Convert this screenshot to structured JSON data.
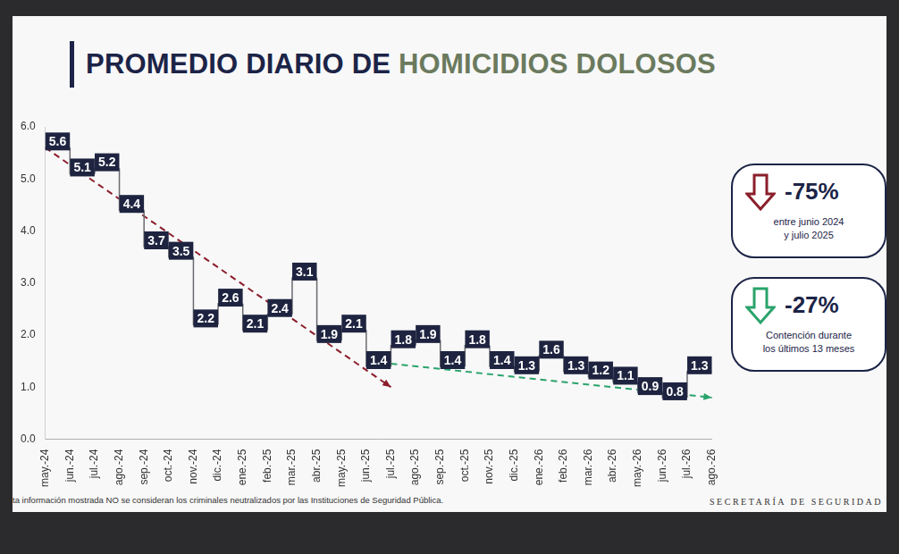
{
  "chart_data": {
    "type": "line",
    "title": "PROMEDIO DIARIO DE HOMICIDIOS DOLOSOS",
    "title_highlight": "HOMICIDIOS DOLOSOS",
    "categories": [
      "may.-24",
      "jun.-24",
      "jul.-24",
      "ago.-24",
      "sep.-24",
      "oct.-24",
      "nov.-24",
      "dic.-24",
      "ene.-25",
      "feb.-25",
      "mar.-25",
      "abr.-25",
      "may.-25",
      "jun.-25",
      "jul.-25",
      "ago.-25",
      "sep.-25",
      "oct.-25",
      "nov.-25",
      "dic.-25",
      "ene.-26",
      "feb.-26",
      "mar.-26",
      "abr.-26",
      "may.-26",
      "jun.-26",
      "jul.-26",
      "ago.-26"
    ],
    "values": [
      null,
      5.6,
      5.1,
      5.2,
      4.4,
      3.7,
      3.5,
      2.2,
      2.6,
      2.1,
      2.4,
      3.1,
      1.9,
      2.1,
      1.4,
      1.8,
      1.9,
      1.4,
      1.8,
      1.4,
      1.3,
      1.6,
      1.3,
      1.2,
      1.1,
      0.9,
      0.8,
      1.3
    ],
    "color": "#1e2440",
    "line_style": "stepped",
    "data_labels": true,
    "grid": false,
    "ylim": [
      0,
      6
    ],
    "yticks": [
      {
        "value": 0,
        "label": "0.0"
      },
      {
        "value": 1,
        "label": "1.0"
      },
      {
        "value": 2,
        "label": "2.0"
      },
      {
        "value": 3,
        "label": "3.0"
      },
      {
        "value": 4,
        "label": "4.0"
      },
      {
        "value": 5,
        "label": "5.0"
      },
      {
        "value": 6,
        "label": "6.0"
      }
    ],
    "trend_lines": [
      {
        "color": "#8b1e2b",
        "line_style": "dashed",
        "start": {
          "x": "may.-24",
          "y": 5.6
        },
        "end": {
          "x": "jul.-25",
          "y": 1.0
        }
      },
      {
        "color": "#2aa36b",
        "line_style": "dashed",
        "start": {
          "x": "jul.-25",
          "y": 1.45
        },
        "end": {
          "x": "ago.-26",
          "y": 0.8
        }
      }
    ],
    "annotations": [
      {
        "label": "-75%",
        "text": [
          "entre junio 2024",
          "y julio 2025"
        ],
        "color": "#8b1e2b"
      },
      {
        "label": "-27%",
        "text": [
          "Contención durante",
          "los últimos 13 meses"
        ],
        "color": "#2aa36b"
      }
    ],
    "footnote": "ta información mostrada NO se consideran los criminales neutralizados por las Instituciones de Seguridad Pública.",
    "source": "SECRETARÍA DE SEGURIDAD"
  }
}
